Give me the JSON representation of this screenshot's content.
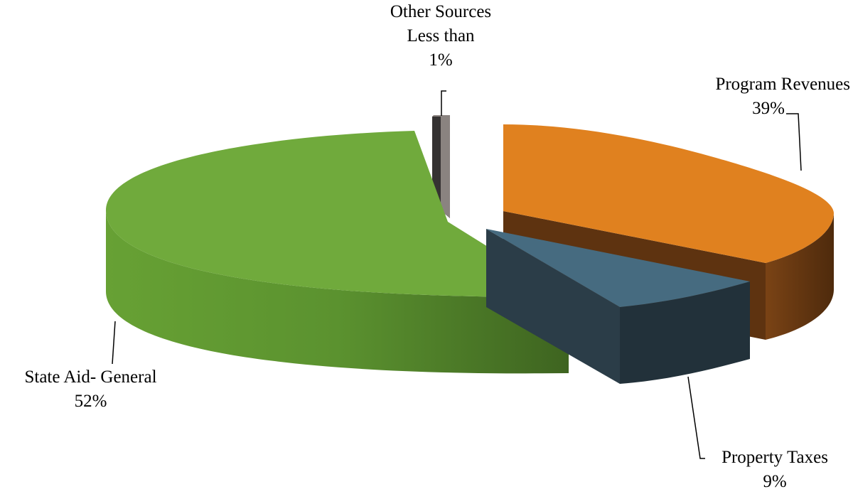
{
  "chart_data": {
    "type": "pie",
    "style": "3d-exploded",
    "slices": [
      {
        "key": "program",
        "name": "Program Revenues",
        "value": 39,
        "label_value": "39%",
        "color": "#E0811F",
        "side_color": "#5E3310"
      },
      {
        "key": "property",
        "name": "Property Taxes",
        "value": 9,
        "label_value": "9%",
        "color": "#466B80",
        "side_color": "#22313A"
      },
      {
        "key": "state",
        "name": "State Aid- General",
        "value": 52,
        "label_value": "52%",
        "color": "#70AA3C",
        "side_color": "#4F7E2A"
      },
      {
        "key": "other",
        "name_lines": [
          "Other Sources",
          "Less than"
        ],
        "value": 1,
        "label_value": "1%",
        "color": "#8A8380",
        "side_color": "#353232"
      }
    ],
    "legend": "none"
  }
}
